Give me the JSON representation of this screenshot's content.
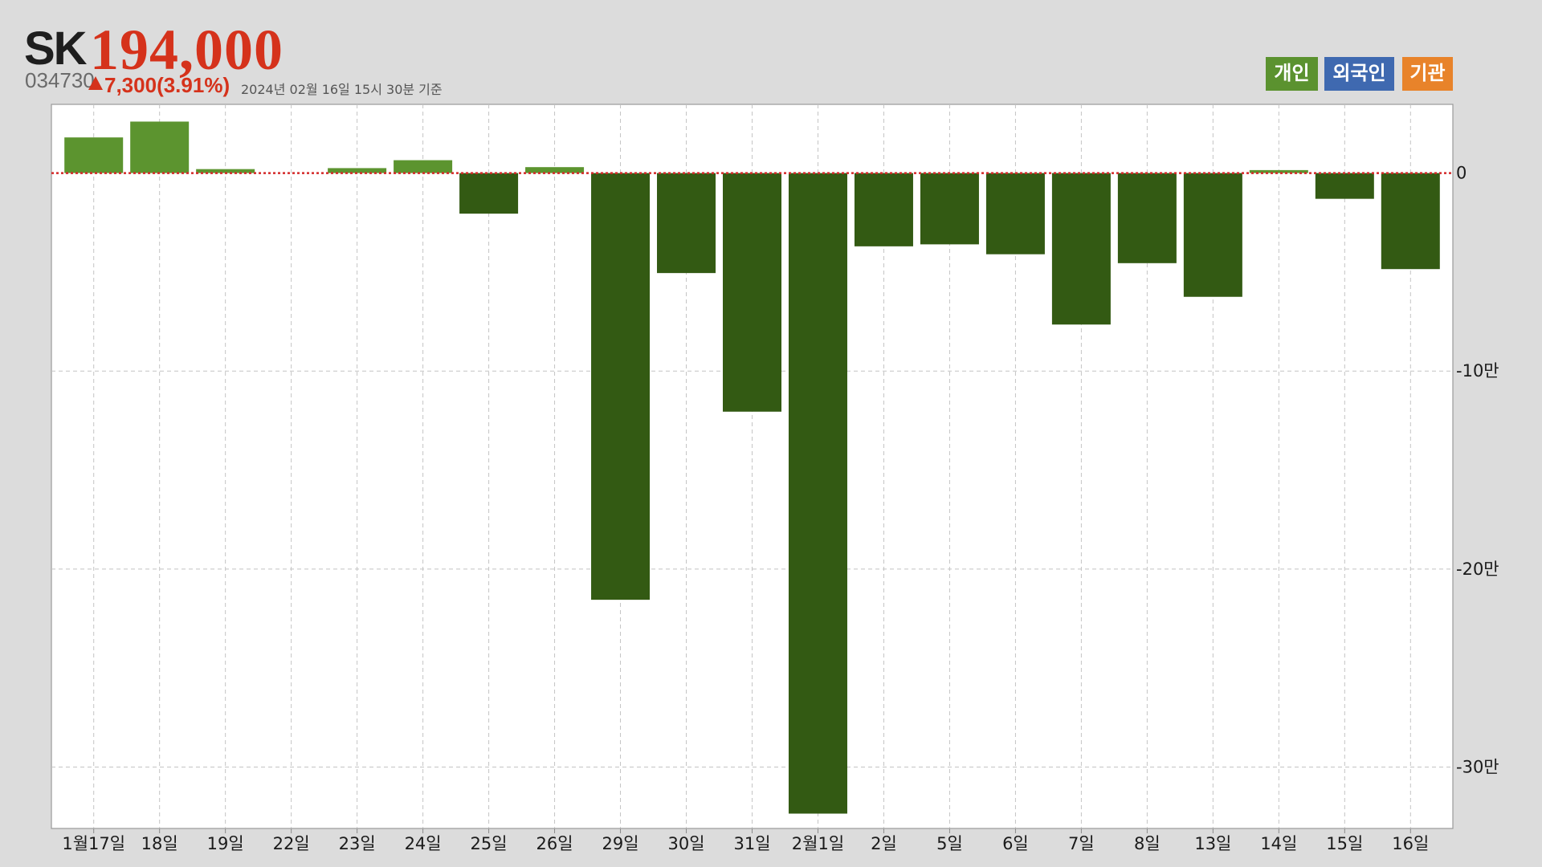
{
  "stock": {
    "name": "SK",
    "price": "194,000",
    "code": "034730",
    "direction_icon": "up-triangle-icon",
    "change": "7,300(3.91%)",
    "timestamp": "2024년 02월 16일 15시 30분 기준"
  },
  "chart_data": {
    "type": "bar",
    "categories": [
      "1월17일",
      "18일",
      "19일",
      "22일",
      "23일",
      "24일",
      "25일",
      "26일",
      "29일",
      "30일",
      "31일",
      "2월1일",
      "2일",
      "5일",
      "6일",
      "7일",
      "8일",
      "13일",
      "14일",
      "15일",
      "16일"
    ],
    "values": [
      18000,
      26000,
      2000,
      0,
      2500,
      6500,
      -20500,
      3000,
      -215500,
      -50500,
      -120500,
      -323500,
      -37000,
      -36000,
      -41000,
      -76500,
      -45500,
      -62500,
      1500,
      -13000,
      -48500
    ],
    "yticks": [
      {
        "value": 0,
        "label": "0"
      },
      {
        "value": -100000,
        "label": "-10만"
      },
      {
        "value": -200000,
        "label": "-20만"
      },
      {
        "value": -300000,
        "label": "-30만"
      }
    ],
    "ylim": [
      -331000,
      34700
    ],
    "grid": true,
    "legend_position": "top-right",
    "legend": [
      {
        "label": "개인",
        "color": "#5b922f"
      },
      {
        "label": "외국인",
        "color": "#3f69b0"
      },
      {
        "label": "기관",
        "color": "#e8832a"
      }
    ],
    "colors": {
      "positive": "#5c942f",
      "negative": "#335a13",
      "zero_line": "#d42a2a",
      "grid": "#c4c4c4"
    }
  }
}
